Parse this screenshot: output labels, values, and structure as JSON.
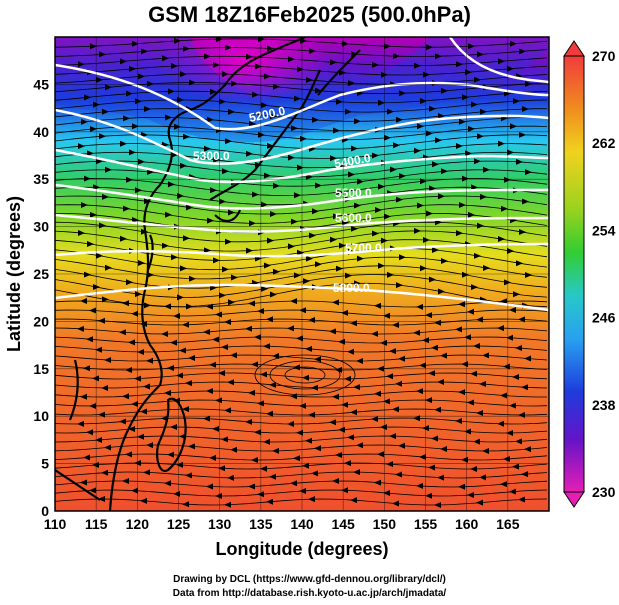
{
  "title": "GSM 18Z16Feb2025 (500.0hPa)",
  "x_axis": {
    "label": "Longitude (degrees)",
    "min": 110,
    "max": 170,
    "ticks": [
      "110",
      "115",
      "120",
      "125",
      "130",
      "135",
      "140",
      "145",
      "150",
      "155",
      "160",
      "165"
    ]
  },
  "y_axis": {
    "label": "Latitude  (degrees)",
    "min": 0,
    "max": 50,
    "ticks": [
      "0",
      "5",
      "10",
      "15",
      "20",
      "25",
      "30",
      "35",
      "40",
      "45"
    ]
  },
  "colorbar": {
    "min": 230,
    "max": 270,
    "labels": [
      "270",
      "262",
      "254",
      "246",
      "238",
      "230"
    ]
  },
  "contours": [
    {
      "label": "5200.0"
    },
    {
      "label": "5300.0"
    },
    {
      "label": "5400.0"
    },
    {
      "label": "5500.0"
    },
    {
      "label": "5600.0"
    },
    {
      "label": "5700.0"
    },
    {
      "label": "5800.0"
    }
  ],
  "credits": {
    "line1": "Drawing by DCL (https://www.gfd-dennou.org/library/dcl/)",
    "line2": "Data from http://database.rish.kyoto-u.ac.jp/arch/jmadata/"
  },
  "colors": {
    "purple": "#a000c8",
    "blue": "#1e3cdc",
    "cyan": "#28c8f0",
    "green": "#32cd32",
    "yellow": "#e6dc1e",
    "orange": "#f08c1e",
    "red": "#f0502d"
  }
}
